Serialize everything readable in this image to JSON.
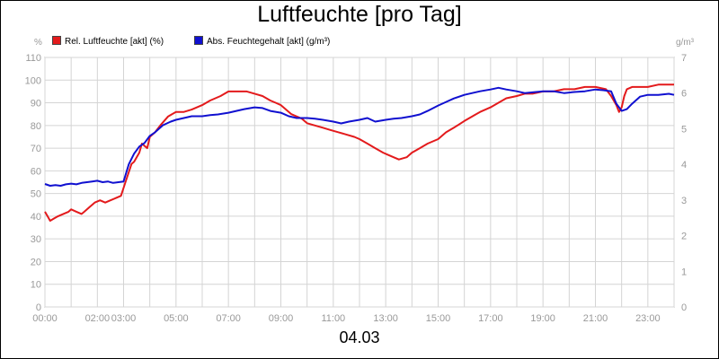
{
  "chart_data": {
    "type": "line",
    "title": "Luftfeuchte [pro Tag]",
    "date_label": "04.03",
    "ylabel_left": "%",
    "ylabel_right": "g/m³",
    "ylim_left": [
      0,
      110
    ],
    "ylim_right": [
      0,
      7
    ],
    "yticks_left": [
      0,
      10,
      20,
      30,
      40,
      50,
      60,
      70,
      80,
      90,
      100,
      110
    ],
    "yticks_right": [
      0,
      1,
      2,
      3,
      4,
      5,
      6,
      7
    ],
    "xlim_hours": [
      0,
      24
    ],
    "xticks": [
      {
        "h": 0,
        "label": "00:00"
      },
      {
        "h": 2,
        "label": "02:00"
      },
      {
        "h": 3,
        "label": "03:00"
      },
      {
        "h": 5,
        "label": "05:00"
      },
      {
        "h": 7,
        "label": "07:00"
      },
      {
        "h": 9,
        "label": "09:00"
      },
      {
        "h": 11,
        "label": "11:00"
      },
      {
        "h": 13,
        "label": "13:00"
      },
      {
        "h": 15,
        "label": "15:00"
      },
      {
        "h": 17,
        "label": "17:00"
      },
      {
        "h": 19,
        "label": "19:00"
      },
      {
        "h": 21,
        "label": "21:00"
      },
      {
        "h": 23,
        "label": "23:00"
      }
    ],
    "grid": true,
    "legend_position": "top-left",
    "series": [
      {
        "name": "Rel. Luftfeuchte [akt] (%)",
        "color": "#e31a1c",
        "axis": "left",
        "x": [
          0,
          0.1,
          0.2,
          0.35,
          0.5,
          0.7,
          0.9,
          1.0,
          1.2,
          1.4,
          1.5,
          1.7,
          1.9,
          2.1,
          2.3,
          2.5,
          2.7,
          2.9,
          3.1,
          3.3,
          3.4,
          3.6,
          3.7,
          3.9,
          4.0,
          4.2,
          4.4,
          4.7,
          5.0,
          5.3,
          5.6,
          6.0,
          6.3,
          6.7,
          7.0,
          7.3,
          7.7,
          8.0,
          8.3,
          8.6,
          8.8,
          9.0,
          9.2,
          9.4,
          9.8,
          10.0,
          10.3,
          10.6,
          10.9,
          11.2,
          11.5,
          11.8,
          12.0,
          12.3,
          12.6,
          12.9,
          13.1,
          13.3,
          13.5,
          13.8,
          14.0,
          14.3,
          14.6,
          15.0,
          15.3,
          15.6,
          16.0,
          16.3,
          16.6,
          17.0,
          17.3,
          17.6,
          18.0,
          18.3,
          18.6,
          19.0,
          19.4,
          19.8,
          20.2,
          20.6,
          21.0,
          21.4,
          21.6,
          21.8,
          21.9,
          22.0,
          22.1,
          22.2,
          22.4,
          22.7,
          23.0,
          23.4,
          23.8,
          24.0
        ],
        "values": [
          42,
          40,
          38,
          39,
          40,
          41,
          42,
          43,
          42,
          41,
          42,
          44,
          46,
          47,
          46,
          47,
          48,
          49,
          56,
          63,
          64,
          68,
          72,
          70,
          75,
          77,
          80,
          84,
          86,
          86,
          87,
          89,
          91,
          93,
          95,
          95,
          95,
          94,
          93,
          91,
          90,
          89,
          87,
          85,
          83,
          81,
          80,
          79,
          78,
          77,
          76,
          75,
          74,
          72,
          70,
          68,
          67,
          66,
          65,
          66,
          68,
          70,
          72,
          74,
          77,
          79,
          82,
          84,
          86,
          88,
          90,
          92,
          93,
          94,
          94,
          95,
          95,
          96,
          96,
          97,
          97,
          96,
          93,
          89,
          86,
          88,
          93,
          96,
          97,
          97,
          97,
          98,
          98,
          98
        ]
      },
      {
        "name": "Abs. Feuchtegehalt [akt] (g/m³)",
        "color": "#1010d0",
        "axis": "right",
        "x": [
          0,
          0.2,
          0.4,
          0.6,
          0.8,
          1.0,
          1.2,
          1.4,
          1.6,
          1.8,
          2.0,
          2.2,
          2.4,
          2.6,
          2.8,
          3.0,
          3.2,
          3.4,
          3.6,
          3.8,
          4.0,
          4.2,
          4.5,
          4.8,
          5.0,
          5.3,
          5.6,
          6.0,
          6.3,
          6.6,
          7.0,
          7.3,
          7.6,
          8.0,
          8.3,
          8.6,
          9.0,
          9.3,
          9.6,
          10.0,
          10.3,
          10.6,
          11.0,
          11.3,
          11.6,
          12.0,
          12.3,
          12.6,
          13.0,
          13.3,
          13.6,
          14.0,
          14.3,
          14.6,
          15.0,
          15.3,
          15.6,
          16.0,
          16.3,
          16.6,
          17.0,
          17.3,
          17.6,
          18.0,
          18.3,
          18.6,
          19.0,
          19.4,
          19.8,
          20.2,
          20.6,
          21.0,
          21.3,
          21.6,
          21.8,
          21.9,
          22.0,
          22.2,
          22.4,
          22.7,
          23.0,
          23.4,
          23.8,
          24.0
        ],
        "values": [
          3.45,
          3.4,
          3.42,
          3.4,
          3.44,
          3.46,
          3.44,
          3.48,
          3.5,
          3.52,
          3.54,
          3.5,
          3.52,
          3.48,
          3.5,
          3.52,
          4.0,
          4.3,
          4.5,
          4.6,
          4.8,
          4.9,
          5.1,
          5.2,
          5.25,
          5.3,
          5.35,
          5.35,
          5.38,
          5.4,
          5.45,
          5.5,
          5.55,
          5.6,
          5.58,
          5.5,
          5.45,
          5.35,
          5.3,
          5.3,
          5.28,
          5.25,
          5.2,
          5.15,
          5.2,
          5.25,
          5.3,
          5.2,
          5.25,
          5.28,
          5.3,
          5.35,
          5.4,
          5.5,
          5.65,
          5.75,
          5.85,
          5.95,
          6.0,
          6.05,
          6.1,
          6.15,
          6.1,
          6.05,
          6.0,
          6.02,
          6.05,
          6.05,
          6.0,
          6.03,
          6.05,
          6.1,
          6.08,
          6.05,
          5.7,
          5.6,
          5.5,
          5.55,
          5.7,
          5.9,
          5.95,
          5.95,
          5.98,
          5.95
        ]
      }
    ]
  }
}
